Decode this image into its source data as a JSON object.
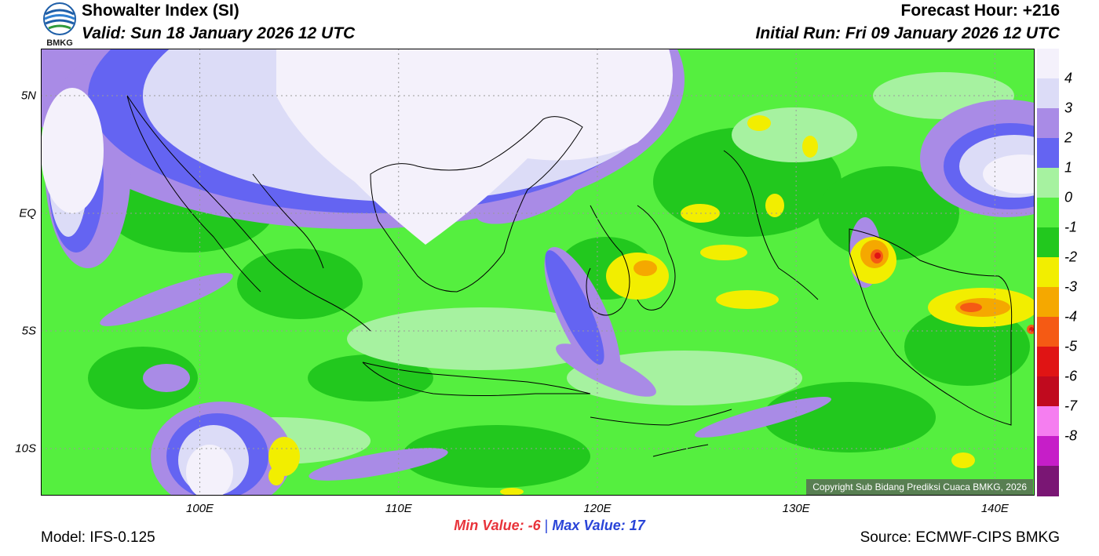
{
  "header": {
    "title": "Showalter Index (SI)",
    "valid": "Valid: Sun 18 January 2026 12 UTC",
    "forecast_hour": "Forecast Hour: +216",
    "initial_run": "Initial Run: Fri 09 January 2026 12 UTC"
  },
  "logo": {
    "text": "BMKG"
  },
  "map": {
    "lat_labels": [
      {
        "label": "5N",
        "lat": 5
      },
      {
        "label": "EQ",
        "lat": 0
      },
      {
        "label": "5S",
        "lat": -5
      },
      {
        "label": "10S",
        "lat": -10
      }
    ],
    "lon_labels": [
      {
        "label": "100E",
        "lon": 100
      },
      {
        "label": "110E",
        "lon": 110
      },
      {
        "label": "120E",
        "lon": 120
      },
      {
        "label": "130E",
        "lon": 130
      },
      {
        "label": "140E",
        "lon": 140
      }
    ],
    "lat_range": [
      -12,
      7
    ],
    "lon_range": [
      92,
      142
    ],
    "copyright": "Copyright Sub Bidang Prediksi Cuaca BMKG, 2026"
  },
  "colorbar": {
    "labels": [
      "4",
      "3",
      "2",
      "1",
      "0",
      "-1",
      "-2",
      "-3",
      "-4",
      "-5",
      "-6",
      "-7",
      "-8"
    ],
    "colors": [
      "#f4f1fb",
      "#dcdcf7",
      "#a98be6",
      "#6464f2",
      "#a6f2a0",
      "#55ef3f",
      "#22c81e",
      "#f2ee00",
      "#f5a800",
      "#f55a14",
      "#e01414",
      "#c00a1e",
      "#f57ef0",
      "#c61ec8",
      "#7a1674"
    ]
  },
  "stats": {
    "min_label": "Min Value:",
    "min_value": "-6",
    "separator": "|",
    "max_label": "Max Value:",
    "max_value": "17"
  },
  "footer": {
    "model": "Model: IFS-0.125",
    "source": "Source: ECMWF-CIPS BMKG"
  }
}
